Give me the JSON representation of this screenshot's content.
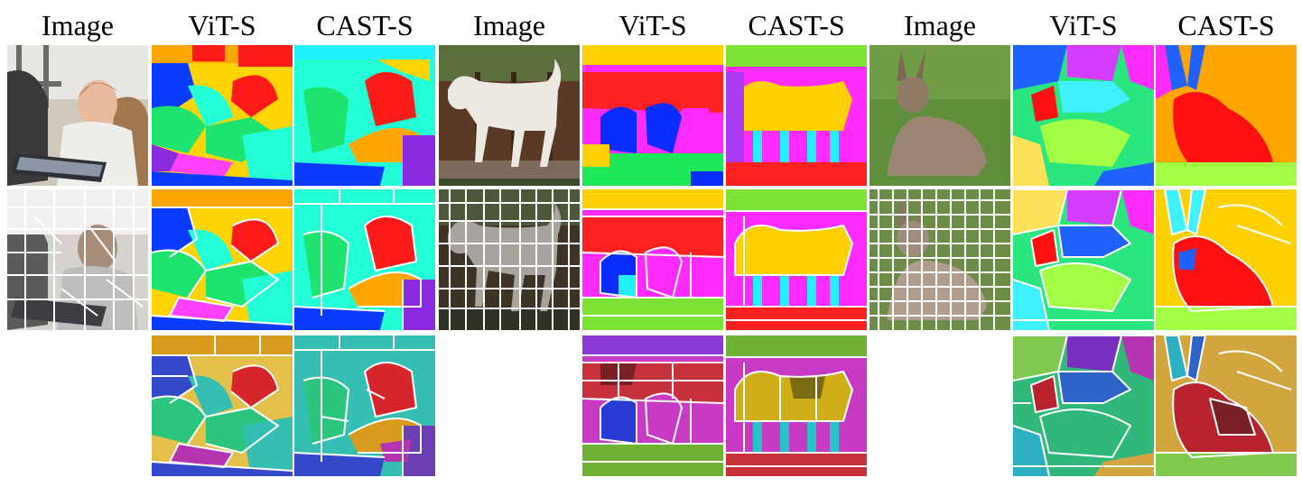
{
  "figure": {
    "column_headers": [
      "Image",
      "ViT-S",
      "CAST-S",
      "Image",
      "ViT-S",
      "CAST-S",
      "Image",
      "ViT-S",
      "CAST-S"
    ],
    "examples": [
      {
        "subject": "baby at keyboard",
        "palette": {
          "a": "#1ee36f",
          "b": "#ff1a1a",
          "c": "#ffd400",
          "d": "#0a3cff",
          "e": "#22ffd6",
          "f": "#ff40ff",
          "g": "#ffa600",
          "h": "#8a2be2"
        },
        "dark_palette": {
          "a": "#2cc57d",
          "b": "#d7262b",
          "c": "#e2c04a",
          "d": "#3349c9",
          "e": "#35bfb2",
          "f": "#b534b0",
          "g": "#d89b1d",
          "h": "#6b3fb3"
        }
      },
      {
        "subject": "white dog on bench",
        "palette": {
          "a": "#ff2020",
          "b": "#ff2bff",
          "c": "#1ee85a",
          "d": "#0b2cff",
          "e": "#22f0ff",
          "f": "#ffd000",
          "g": "#aa3cf6",
          "h": "#7ce334"
        },
        "dark_palette": {
          "a": "#c7303d",
          "b": "#c93ac4",
          "c": "#47c83a",
          "d": "#283ad5",
          "e": "#26c4c7",
          "f": "#cfae18",
          "g": "#8b3ad6",
          "h": "#6fb133"
        }
      },
      {
        "subject": "hare on grass",
        "palette": {
          "a": "#ff0f0f",
          "b": "#ff9f00",
          "c": "#a2ff44",
          "d": "#1f62ff",
          "e": "#d63cff",
          "f": "#ffe15a",
          "g": "#29e67f",
          "h": "#3ff0ff"
        },
        "dark_palette": {
          "a": "#b8232f",
          "b": "#c58c2b",
          "c": "#7fc94e",
          "d": "#2e64c8",
          "e": "#7a2fc0",
          "f": "#d2a53f",
          "g": "#2fb87a",
          "h": "#2ab0c0"
        }
      }
    ]
  }
}
